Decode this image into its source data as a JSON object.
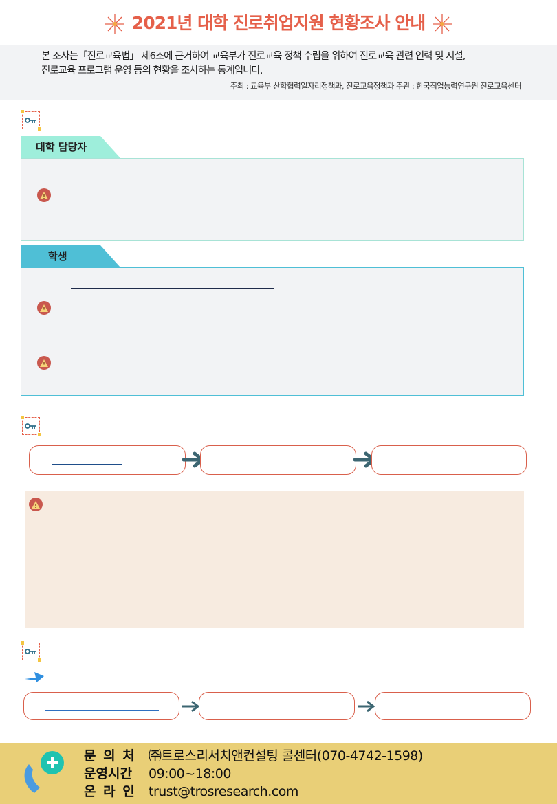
{
  "header": {
    "title": "2021년 대학 진로취업지원 현황조사 안내",
    "intro_line1": "본 조사는「진로교육법」 제6조에 근거하여 교육부가  진로교육 정책 수립을 위하여  진로교육 관련 인력 및 시설,",
    "intro_line2": "진로교육 프로그램 운영 등의 현황을 조사하는 통계입니다.",
    "organizers": "주최 : 교육부 산학협력일자리정책과, 진로교육정책과   주관 : 한국직업능력연구원 진로교육센터"
  },
  "sections": {
    "staff_tab": "대학 담당자",
    "student_tab": "학생"
  },
  "colors": {
    "accent": "#e5604a",
    "staff_tab": "#9eeedb",
    "student_tab": "#4fbfd6",
    "notice_bg": "#f7ebe0",
    "footer_bg": "#e9cf77"
  },
  "icons": [
    "burst-icon",
    "key-icon",
    "warning-icon",
    "arrow-right-icon",
    "phone-icon",
    "plus-icon"
  ],
  "footer": {
    "contact_label": "문 의 처",
    "contact_value": "㈜트로스리서치앤컨설팅 콜센터(070-4742-1598)",
    "hours_label": "운영시간",
    "hours_value": "09:00~18:00",
    "online_label": "온 라 인",
    "online_value": "trust@trosresearch.com"
  }
}
